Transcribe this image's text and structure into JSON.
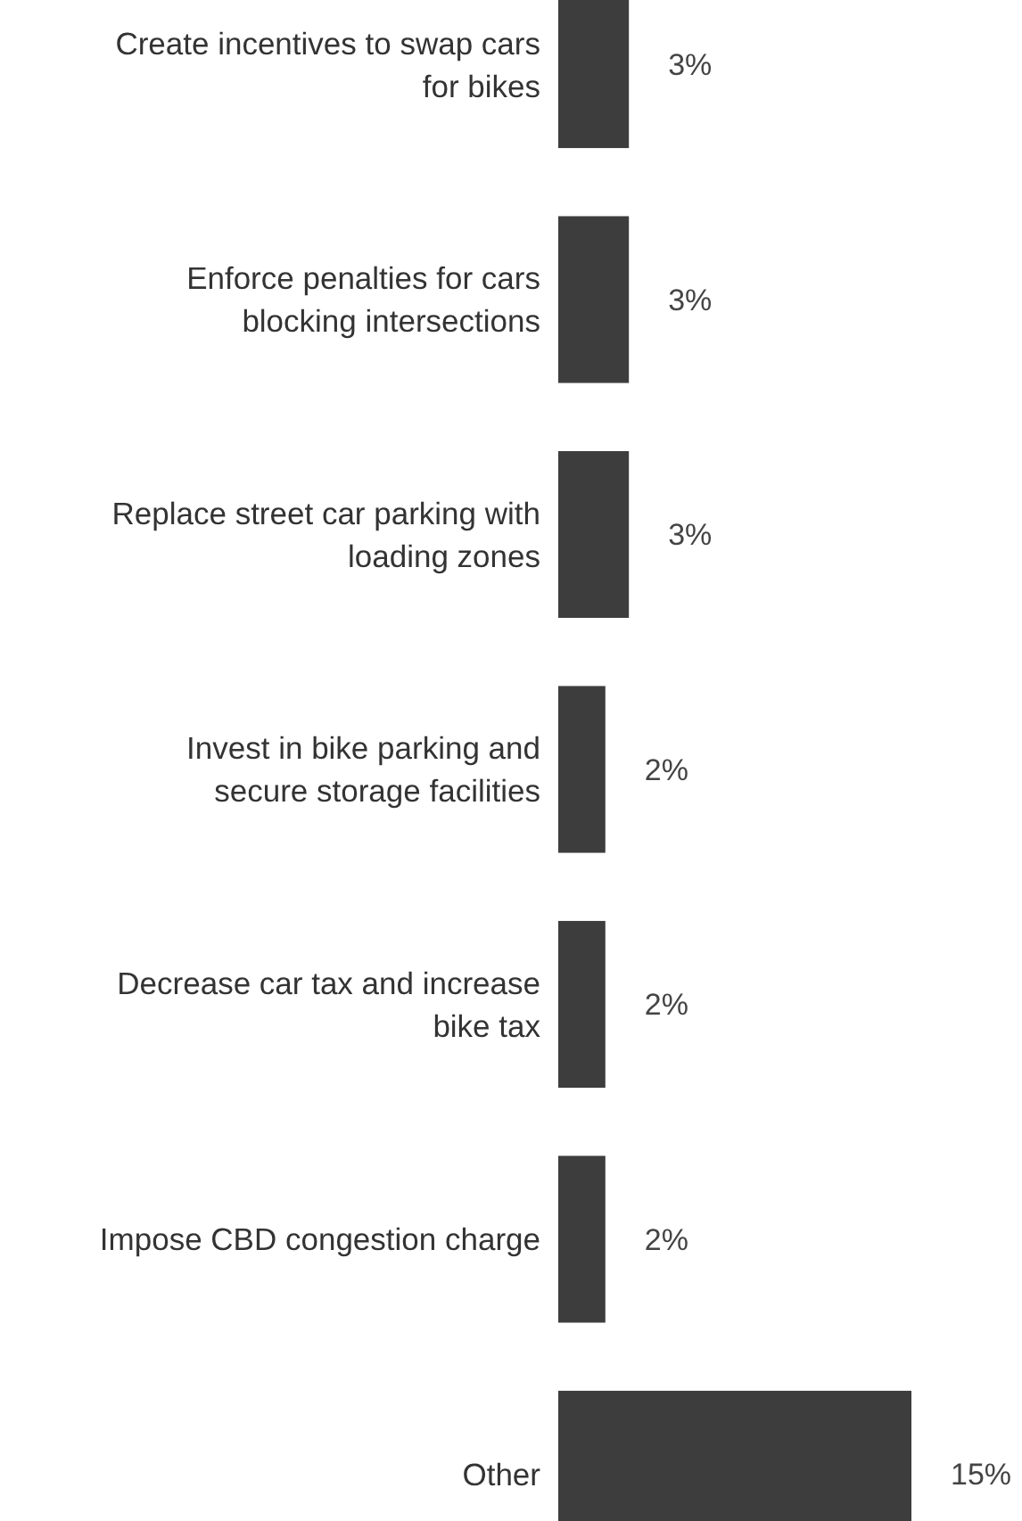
{
  "chart_data": {
    "type": "bar",
    "orientation": "horizontal",
    "categories": [
      "Create incentives to swap cars for bikes",
      "Enforce penalties for cars blocking intersections",
      "Replace street car parking with loading zones",
      "Invest in bike parking and secure storage facilities",
      "Decrease car tax and increase bike tax",
      "Impose CBD congestion charge",
      "Other"
    ],
    "values": [
      3,
      3,
      3,
      2,
      2,
      2,
      15
    ],
    "value_labels": [
      "3%",
      "3%",
      "3%",
      "2%",
      "2%",
      "2%",
      "15%"
    ],
    "color": "#3d3d3d"
  }
}
